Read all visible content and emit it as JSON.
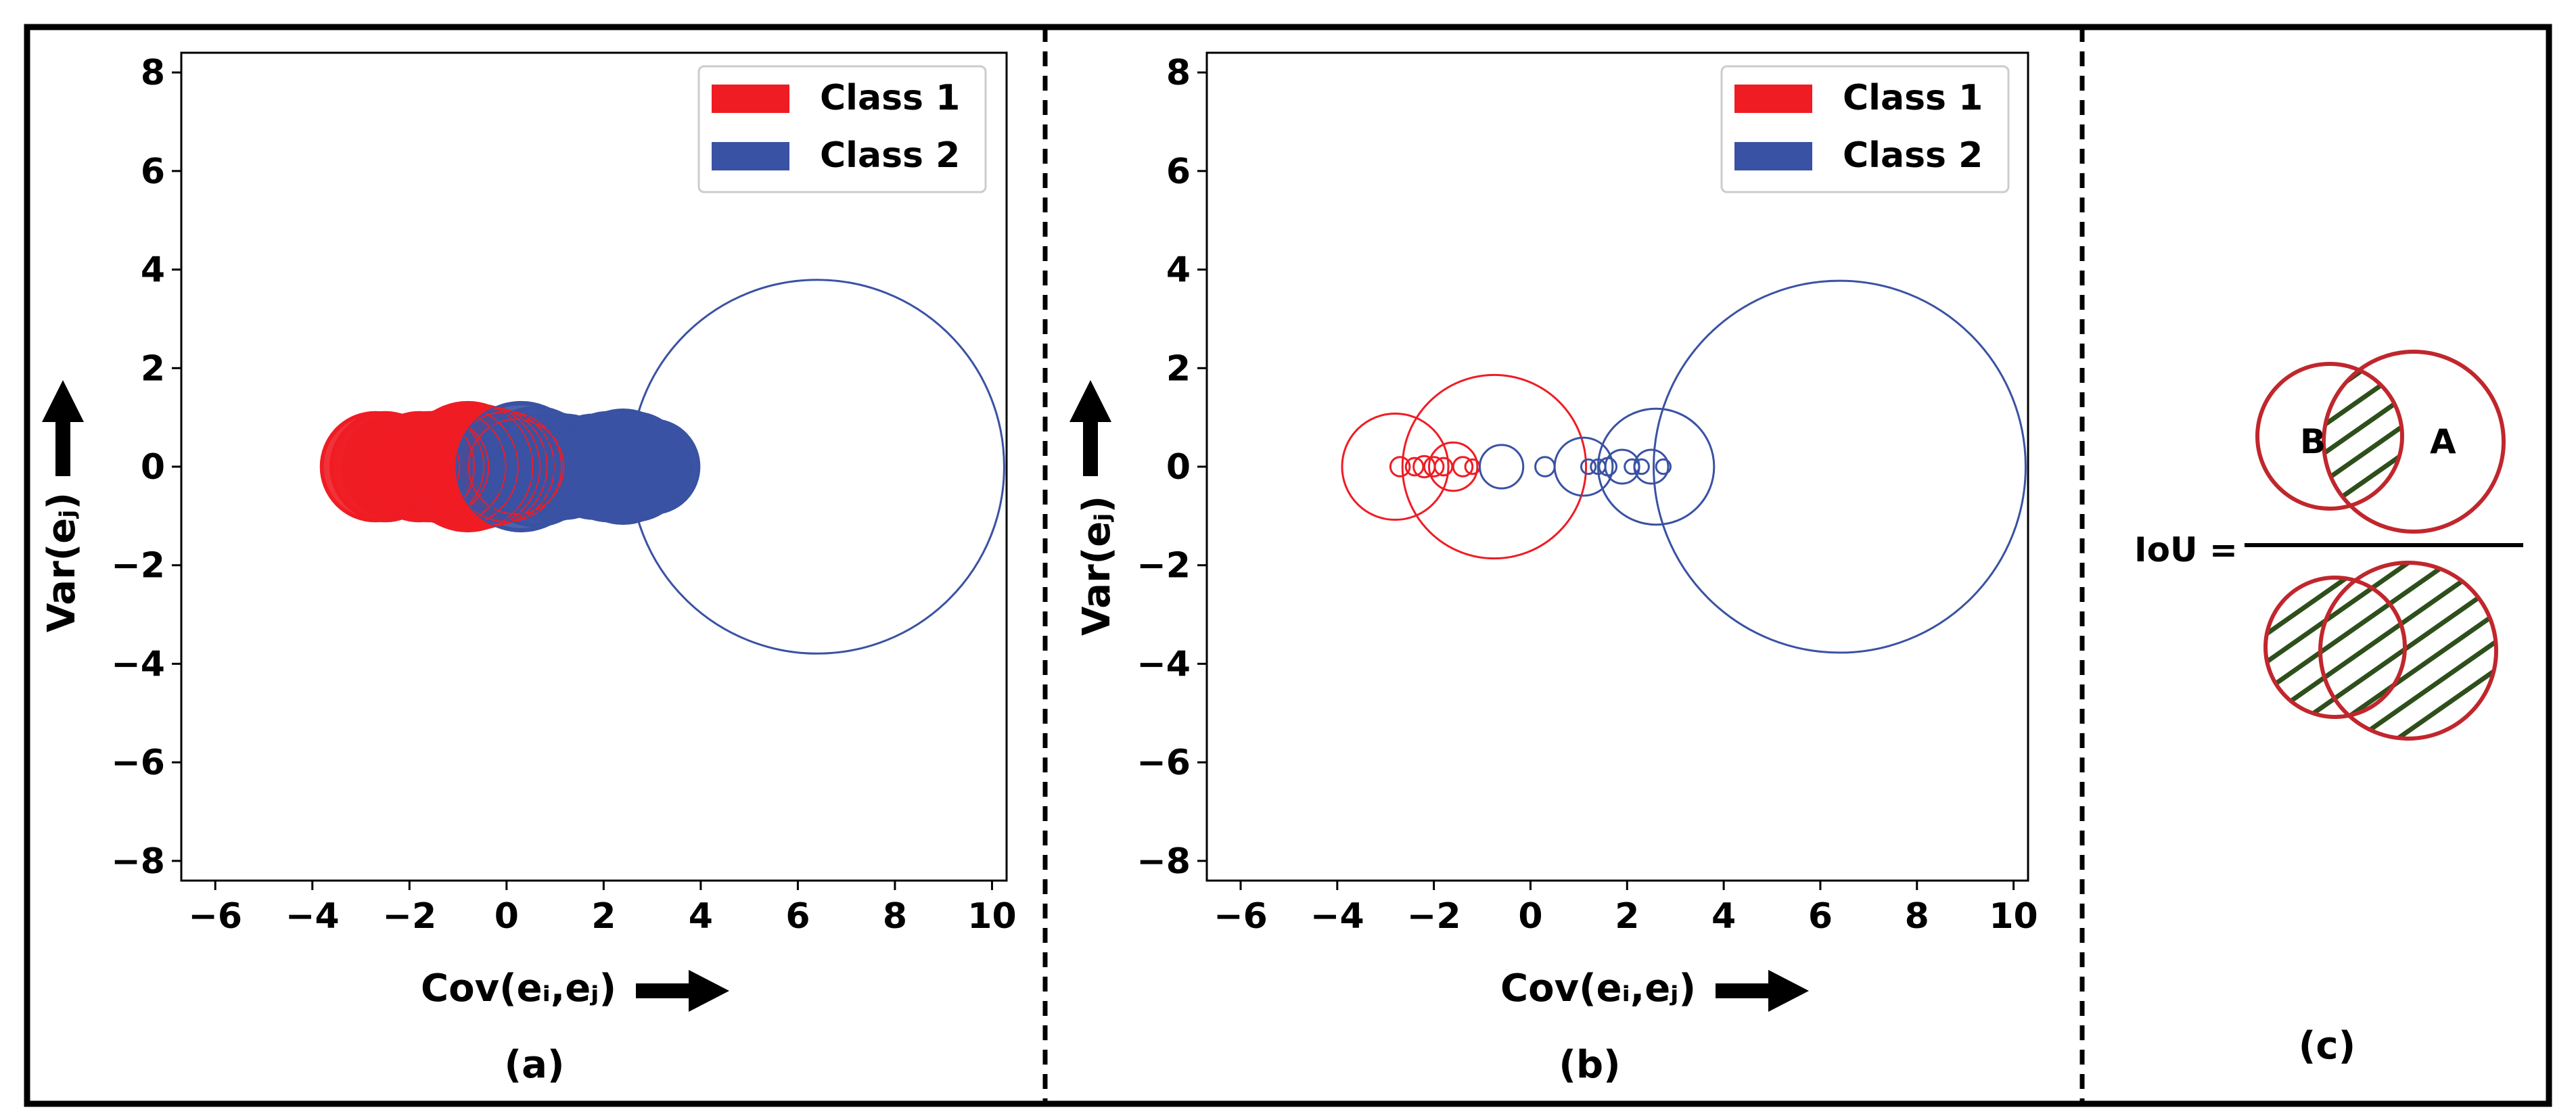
{
  "colors": {
    "class1": "#ef1c24",
    "class2": "#3a52a3",
    "iou_circle": "#c0272d",
    "iou_hatch": "#2e4f1b",
    "frame": "#000000"
  },
  "chart_data": [
    {
      "type": "scatter",
      "id": "a",
      "caption": "(a)",
      "title": "",
      "xlabel": "Cov(eᵢ,eⱼ)",
      "ylabel": "Var(eⱼ)",
      "xlim": [
        -6.7,
        10.3
      ],
      "ylim": [
        -8.4,
        8.4
      ],
      "xticks": [
        -6,
        -4,
        -2,
        0,
        2,
        4,
        6,
        8,
        10
      ],
      "yticks": [
        -8,
        -6,
        -4,
        -2,
        0,
        2,
        4,
        6,
        8
      ],
      "grid": false,
      "legend": {
        "placement": "top-right",
        "entries": [
          {
            "label": "Class 1",
            "color_key": "class1"
          },
          {
            "label": "Class 2",
            "color_key": "class2"
          }
        ]
      },
      "series": [
        {
          "name": "Class 1",
          "marker": "circle-filled-dense",
          "points": [
            {
              "x": -2.7,
              "y": 0,
              "r": 1.1
            },
            {
              "x": -2.5,
              "y": 0,
              "r": 1.1
            },
            {
              "x": -2.3,
              "y": 0,
              "r": 1.05
            },
            {
              "x": -2.0,
              "y": 0,
              "r": 1.0
            },
            {
              "x": -1.8,
              "y": 0,
              "r": 1.1
            },
            {
              "x": -1.6,
              "y": 0,
              "r": 1.1
            },
            {
              "x": -1.4,
              "y": 0,
              "r": 1.0
            },
            {
              "x": -1.2,
              "y": 0,
              "r": 1.15
            },
            {
              "x": -1.0,
              "y": 0,
              "r": 1.2
            },
            {
              "x": -0.8,
              "y": 0,
              "r": 1.3
            },
            {
              "x": -0.6,
              "y": 0,
              "r": 1.25
            },
            {
              "x": -0.4,
              "y": 0,
              "r": 1.2
            },
            {
              "x": -0.2,
              "y": 0,
              "r": 1.15
            },
            {
              "x": 0.0,
              "y": 0,
              "r": 1.1
            },
            {
              "x": 0.2,
              "y": 0,
              "r": 0.95
            }
          ]
        },
        {
          "name": "Class 2",
          "marker": "circle-filled-dense",
          "points": [
            {
              "x": 0.3,
              "y": 0,
              "r": 1.3
            },
            {
              "x": 0.6,
              "y": 0,
              "r": 1.2
            },
            {
              "x": 0.9,
              "y": 0,
              "r": 1.1
            },
            {
              "x": 1.2,
              "y": 0,
              "r": 1.05
            },
            {
              "x": 1.5,
              "y": 0,
              "r": 1.0
            },
            {
              "x": 1.8,
              "y": 0,
              "r": 1.05
            },
            {
              "x": 2.1,
              "y": 0,
              "r": 1.1
            },
            {
              "x": 2.4,
              "y": 0,
              "r": 1.15
            },
            {
              "x": 2.6,
              "y": 0,
              "r": 1.1
            },
            {
              "x": 2.8,
              "y": 0,
              "r": 1.0
            },
            {
              "x": 3.0,
              "y": 0,
              "r": 0.95
            },
            {
              "x": 3.1,
              "y": 0,
              "r": 0.85
            },
            {
              "x": 6.4,
              "y": 0,
              "r": 3.85,
              "outline_only": true
            }
          ]
        }
      ]
    },
    {
      "type": "scatter",
      "id": "b",
      "caption": "(b)",
      "title": "",
      "xlabel": "Cov(eᵢ,eⱼ)",
      "ylabel": "Var(eⱼ)",
      "xlim": [
        -6.7,
        10.3
      ],
      "ylim": [
        -8.4,
        8.4
      ],
      "xticks": [
        -6,
        -4,
        -2,
        0,
        2,
        4,
        6,
        8,
        10
      ],
      "yticks": [
        -8,
        -6,
        -4,
        -2,
        0,
        2,
        4,
        6,
        8
      ],
      "grid": false,
      "legend": {
        "placement": "top-right",
        "entries": [
          {
            "label": "Class 1",
            "color_key": "class1"
          },
          {
            "label": "Class 2",
            "color_key": "class2"
          }
        ]
      },
      "series": [
        {
          "name": "Class 1",
          "marker": "circle-outline",
          "points": [
            {
              "x": -2.8,
              "y": 0,
              "r": 1.1
            },
            {
              "x": -2.7,
              "y": 0,
              "r": 0.2
            },
            {
              "x": -2.4,
              "y": 0,
              "r": 0.18
            },
            {
              "x": -2.2,
              "y": 0,
              "r": 0.22
            },
            {
              "x": -2.0,
              "y": 0,
              "r": 0.2
            },
            {
              "x": -1.8,
              "y": 0,
              "r": 0.18
            },
            {
              "x": -1.6,
              "y": 0,
              "r": 0.5
            },
            {
              "x": -1.4,
              "y": 0,
              "r": 0.2
            },
            {
              "x": -1.2,
              "y": 0,
              "r": 0.15
            },
            {
              "x": -0.75,
              "y": 0,
              "r": 1.9
            }
          ]
        },
        {
          "name": "Class 2",
          "marker": "circle-outline",
          "points": [
            {
              "x": -0.6,
              "y": 0,
              "r": 0.45
            },
            {
              "x": 0.3,
              "y": 0,
              "r": 0.2
            },
            {
              "x": 1.1,
              "y": 0,
              "r": 0.6
            },
            {
              "x": 1.2,
              "y": 0,
              "r": 0.15
            },
            {
              "x": 1.4,
              "y": 0,
              "r": 0.15
            },
            {
              "x": 1.6,
              "y": 0,
              "r": 0.18
            },
            {
              "x": 1.9,
              "y": 0,
              "r": 0.35
            },
            {
              "x": 2.1,
              "y": 0,
              "r": 0.15
            },
            {
              "x": 2.3,
              "y": 0,
              "r": 0.15
            },
            {
              "x": 2.5,
              "y": 0,
              "r": 0.35
            },
            {
              "x": 2.6,
              "y": 0,
              "r": 1.2
            },
            {
              "x": 2.75,
              "y": 0,
              "r": 0.15
            },
            {
              "x": 6.4,
              "y": 0,
              "r": 3.85
            }
          ]
        }
      ]
    }
  ],
  "panel_c": {
    "caption": "(c)",
    "lhs": "IoU =",
    "label_a": "A",
    "label_b": "B"
  }
}
